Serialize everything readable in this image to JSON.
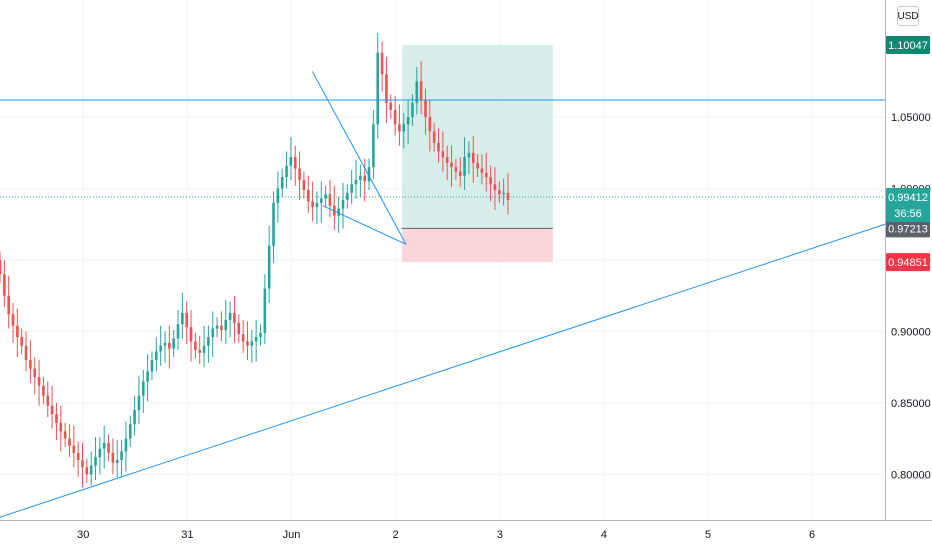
{
  "header": {
    "currency": "USD"
  },
  "price_tags": {
    "take_profit": "1.10047",
    "last_price": "0.99412",
    "countdown": "36:56",
    "entry": "0.97213",
    "stop_loss": "0.94851"
  },
  "colors": {
    "bull": "#26a69a",
    "bear": "#ef5350",
    "trendline": "#2196f3",
    "profit_zone": "#cfeae6",
    "loss_zone": "#fbd3d6",
    "entry_tag": "#5d606b",
    "tp_tag": "#0f8a72",
    "last_tag": "#26a69a",
    "sl_tag": "#f23645"
  },
  "chart_data": {
    "type": "candlestick",
    "x_tick_labels": [
      "30",
      "31",
      "Jun",
      "2",
      "3",
      "4",
      "5",
      "6"
    ],
    "y_tick_labels": [
      "1.05000",
      "1.00000",
      "0.95000",
      "0.90000",
      "0.85000",
      "0.80000"
    ],
    "y_ticks": [
      1.05,
      1.0,
      0.95,
      0.9,
      0.85,
      0.8
    ],
    "ylim": [
      0.768,
      1.132
    ],
    "xlim": [
      29.2,
      37.7
    ],
    "x_tick_values": [
      30,
      31,
      32,
      33,
      34,
      35,
      36,
      37
    ],
    "grid": true,
    "candle_interval": 0.0417,
    "candle_start_x": 29.2,
    "closes": [
      0.94,
      0.925,
      0.912,
      0.904,
      0.896,
      0.89,
      0.88,
      0.874,
      0.868,
      0.862,
      0.855,
      0.848,
      0.842,
      0.836,
      0.83,
      0.825,
      0.82,
      0.815,
      0.81,
      0.805,
      0.8,
      0.806,
      0.812,
      0.818,
      0.822,
      0.815,
      0.808,
      0.81,
      0.816,
      0.825,
      0.835,
      0.845,
      0.855,
      0.865,
      0.872,
      0.88,
      0.886,
      0.89,
      0.892,
      0.888,
      0.895,
      0.905,
      0.913,
      0.903,
      0.893,
      0.887,
      0.885,
      0.89,
      0.896,
      0.902,
      0.904,
      0.901,
      0.908,
      0.913,
      0.906,
      0.898,
      0.893,
      0.89,
      0.893,
      0.896,
      0.899,
      0.93,
      0.96,
      0.99,
      1.0,
      1.008,
      1.016,
      1.022,
      1.014,
      1.006,
      0.999,
      0.991,
      0.987,
      0.99,
      0.993,
      0.996,
      0.988,
      0.981,
      0.986,
      0.992,
      0.997,
      1.003,
      1.006,
      1.009,
      1.005,
      1.015,
      1.045,
      1.095,
      1.08,
      1.06,
      1.055,
      1.045,
      1.04,
      1.045,
      1.05,
      1.06,
      1.075,
      1.062,
      1.05,
      1.04,
      1.032,
      1.026,
      1.022,
      1.018,
      1.015,
      1.012,
      1.009,
      1.022,
      1.025,
      1.018,
      1.014,
      1.011,
      1.008,
      1.003,
      0.999,
      0.996,
      0.997,
      0.992
    ],
    "lines": [
      {
        "name": "resistance",
        "x1": 29.2,
        "y1": 1.062,
        "x2": 37.7,
        "y2": 1.062
      },
      {
        "name": "rising-trendline",
        "x1": 29.2,
        "y1": 0.77,
        "x2": 37.7,
        "y2": 0.975
      },
      {
        "name": "wedge-upper",
        "x1": 32.2,
        "y1": 1.082,
        "x2": 33.1,
        "y2": 0.961
      },
      {
        "name": "wedge-lower",
        "x1": 32.3,
        "y1": 0.988,
        "x2": 33.1,
        "y2": 0.961
      }
    ],
    "position": {
      "type": "long",
      "x_start": 33.06,
      "x_end": 34.51,
      "take_profit": 1.10047,
      "entry": 0.97213,
      "stop_loss": 0.94851
    },
    "last_price": 0.99412
  }
}
